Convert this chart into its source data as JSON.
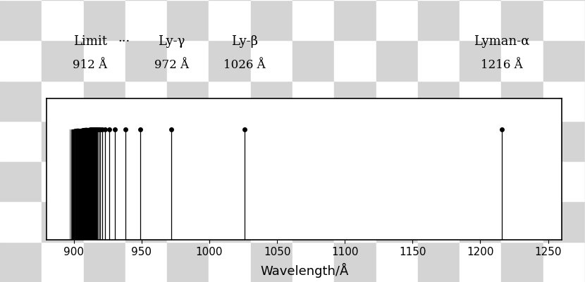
{
  "xlim": [
    880,
    1260
  ],
  "ylim": [
    0,
    1
  ],
  "xlabel": "Wavelength/Å",
  "xticks": [
    900,
    950,
    1000,
    1050,
    1100,
    1150,
    1200,
    1250
  ],
  "figsize": [
    8.3,
    4.01
  ],
  "dpi": 100,
  "checker_light": "#d4d4d4",
  "checker_dark": "#ffffff",
  "checker_n_cols": 14,
  "checker_n_rows": 7,
  "annotation_data": [
    {
      "name": "Limit",
      "sub": "912 Å",
      "wl": 912,
      "ha": "left"
    },
    {
      "name": "···",
      "sub": "",
      "wl": 937,
      "ha": "center"
    },
    {
      "name": "Ly-γ",
      "sub": "972 Å",
      "wl": 972,
      "ha": "center"
    },
    {
      "name": "Ly-β",
      "sub": "1026 Å",
      "wl": 1026,
      "ha": "center"
    },
    {
      "name": "Lyman-α",
      "sub": "1216 Å",
      "wl": 1216,
      "ha": "center"
    }
  ],
  "named_lines": [
    1216,
    1026,
    972,
    949,
    938
  ],
  "series_lines": [
    930,
    926,
    923,
    921,
    919.5,
    918.5,
    917.5,
    916.8,
    916.2,
    915.7,
    915.2,
    914.8,
    914.4,
    914.1,
    913.8,
    913.5,
    913.3,
    913.1,
    912.9
  ],
  "continuum_lines_start": 897,
  "continuum_lines_end": 912,
  "continuum_n": 35,
  "line_height": 0.78,
  "label_fontsize": 13,
  "sublabel_fontsize": 12,
  "tick_fontsize": 11,
  "xlabel_fontsize": 13
}
